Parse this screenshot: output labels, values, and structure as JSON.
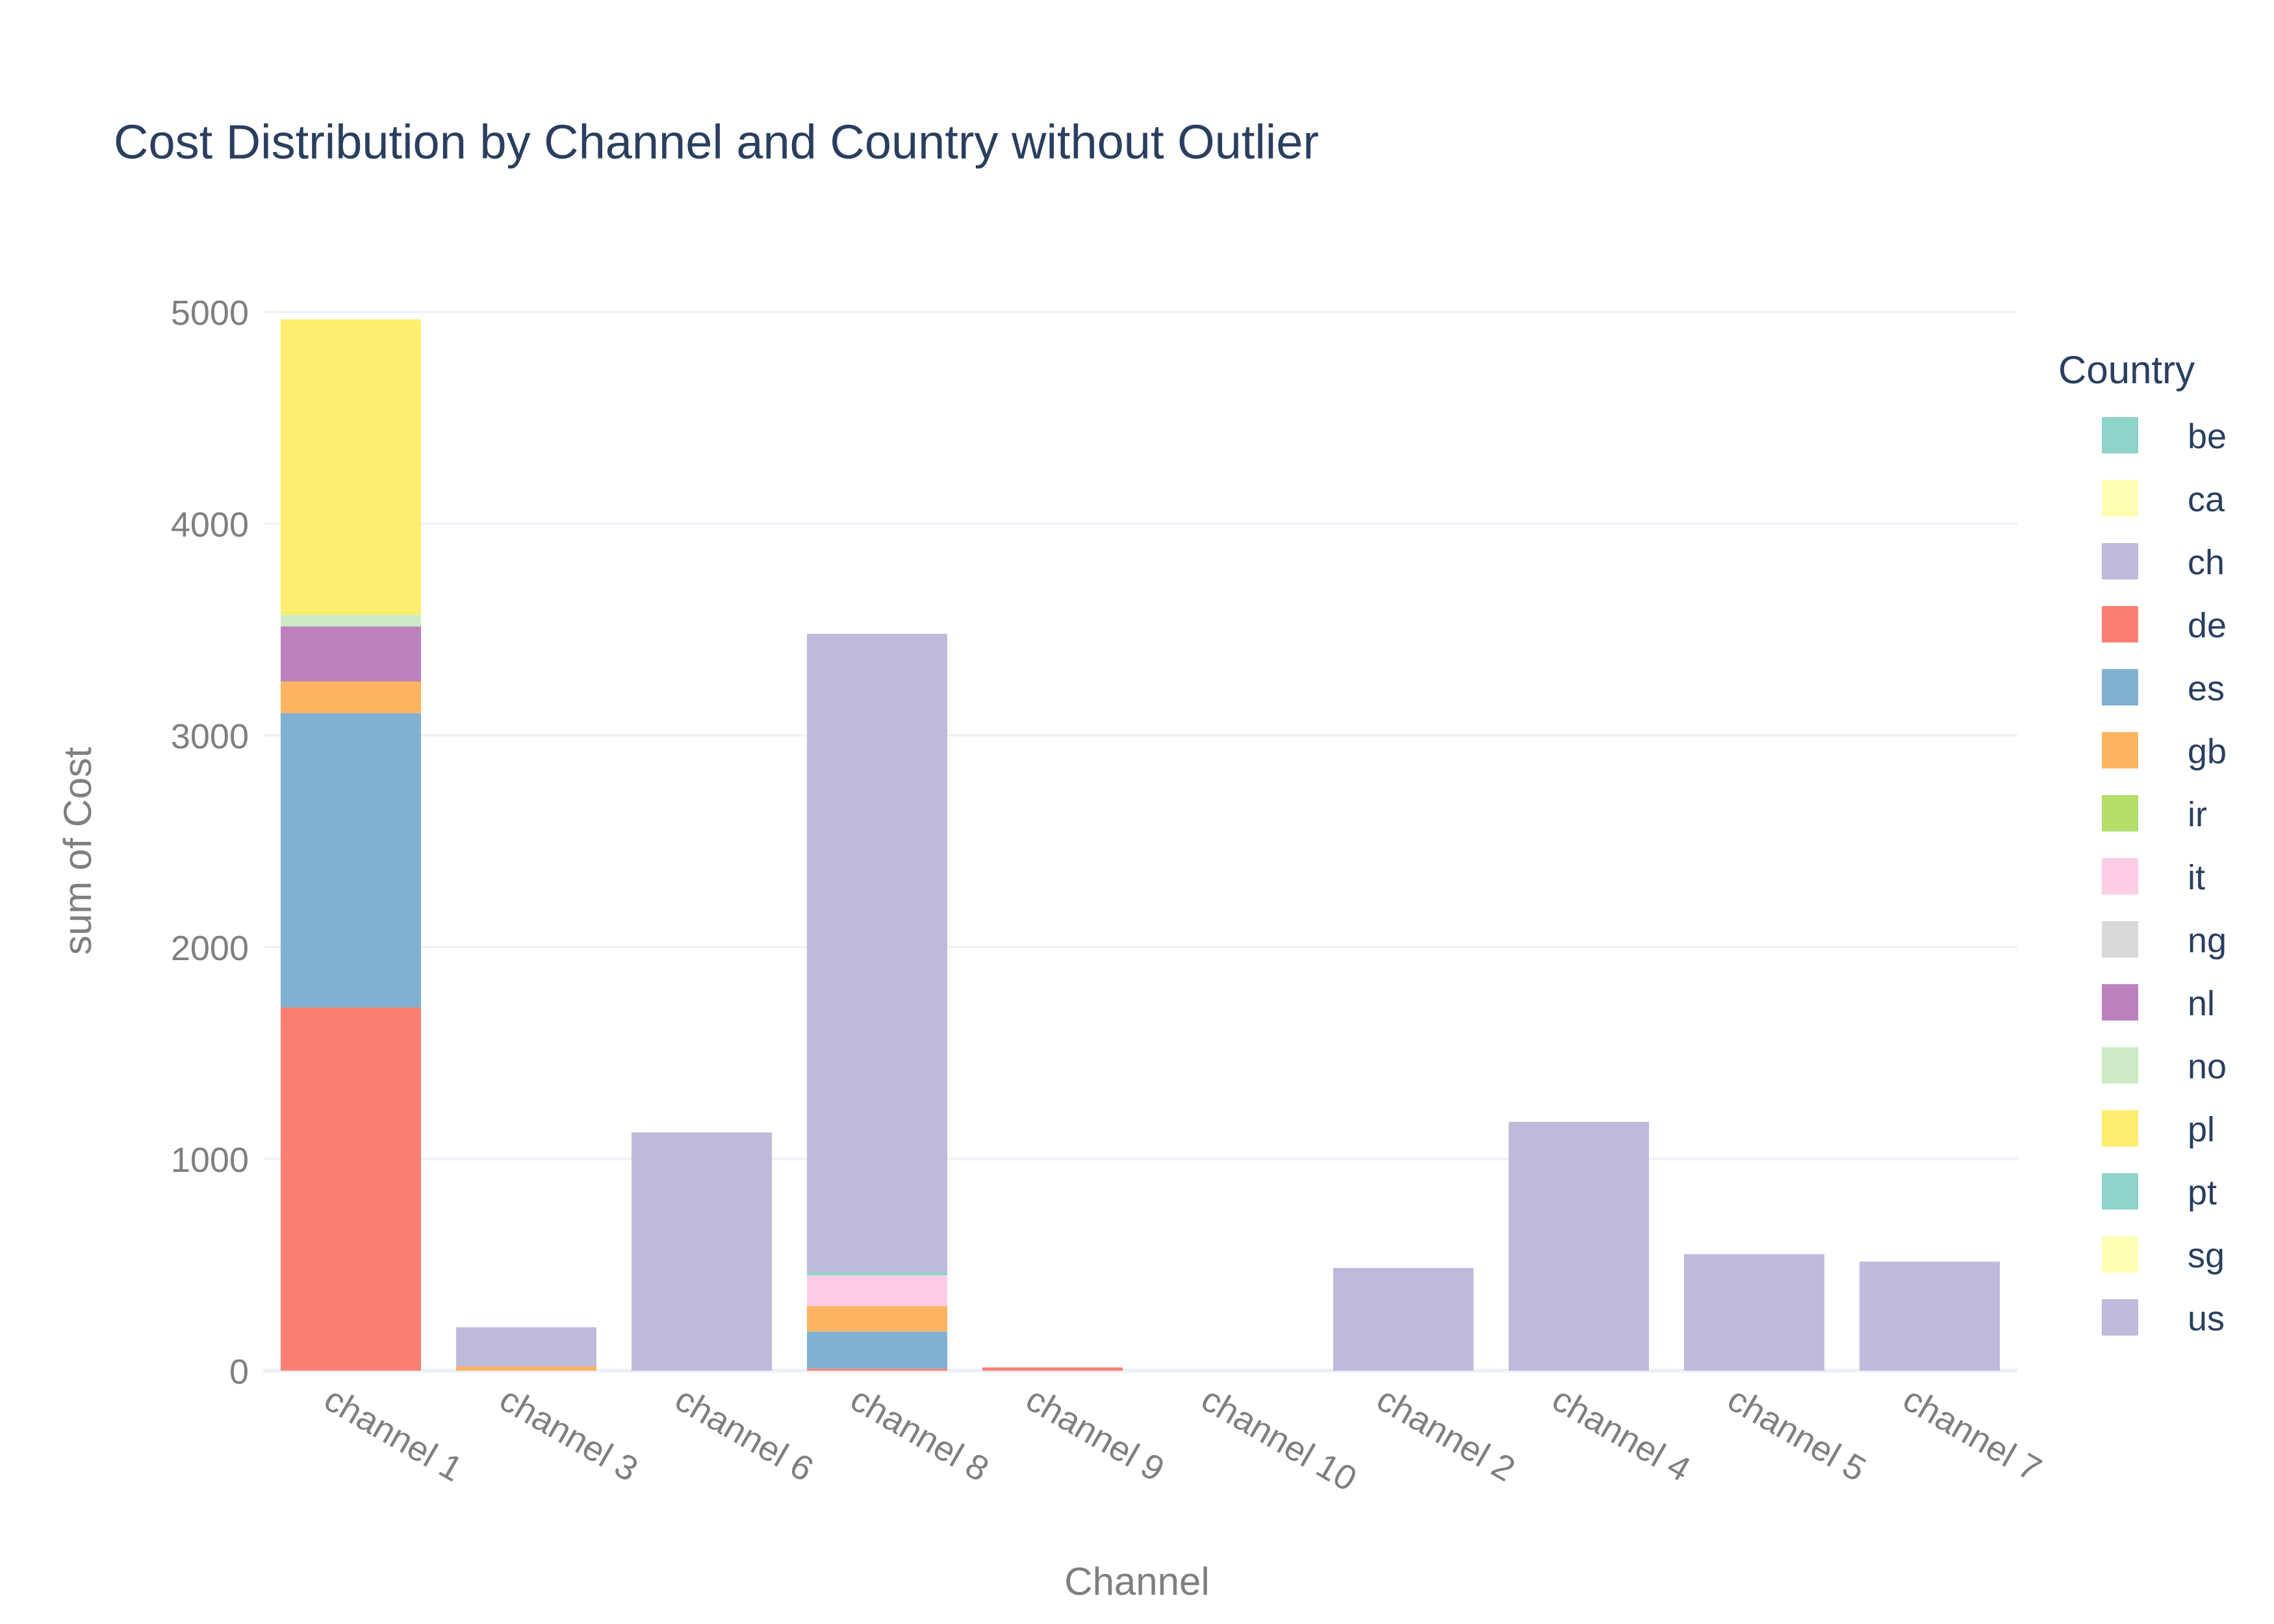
{
  "chart_data": {
    "type": "bar",
    "barmode": "stack",
    "title": "Cost Distribution by Channel and Country without Outlier",
    "xlabel": "Channel",
    "ylabel": "sum of Cost",
    "ylim": [
      0,
      5200
    ],
    "yticks": [
      0,
      1000,
      2000,
      3000,
      4000,
      5000
    ],
    "grid": true,
    "legend_title": "Country",
    "legend_placement": "right",
    "categories": [
      "channel 1",
      "channel 3",
      "channel 6",
      "channel 8",
      "channel 9",
      "channel 10",
      "channel 2",
      "channel 4",
      "channel 5",
      "channel 7"
    ],
    "series": [
      {
        "name": "be",
        "color": "#8dd3c7",
        "values": [
          0,
          0,
          0,
          0,
          0,
          0,
          0,
          0,
          0,
          0
        ]
      },
      {
        "name": "ca",
        "color": "#ffffb3",
        "values": [
          0,
          0,
          0,
          0,
          0,
          0,
          0,
          0,
          0,
          0
        ]
      },
      {
        "name": "ch",
        "color": "#bebada",
        "values": [
          0,
          0,
          0,
          0,
          0,
          0,
          0,
          0,
          0,
          0
        ]
      },
      {
        "name": "de",
        "color": "#fb8072",
        "values": [
          1715,
          0,
          0,
          10,
          15,
          0,
          0,
          0,
          0,
          0
        ]
      },
      {
        "name": "es",
        "color": "#80b1d3",
        "values": [
          1390,
          0,
          0,
          175,
          0,
          0,
          0,
          0,
          0,
          0
        ]
      },
      {
        "name": "gb",
        "color": "#fdb462",
        "values": [
          150,
          20,
          0,
          120,
          0,
          0,
          0,
          0,
          0,
          0
        ]
      },
      {
        "name": "ir",
        "color": "#b3de69",
        "values": [
          0,
          0,
          0,
          0,
          0,
          0,
          0,
          0,
          0,
          0
        ]
      },
      {
        "name": "it",
        "color": "#fccde5",
        "values": [
          0,
          0,
          0,
          145,
          0,
          0,
          0,
          0,
          0,
          0
        ]
      },
      {
        "name": "ng",
        "color": "#d9d9d9",
        "values": [
          0,
          0,
          0,
          0,
          0,
          0,
          0,
          0,
          0,
          0
        ]
      },
      {
        "name": "nl",
        "color": "#bc80bd",
        "values": [
          260,
          0,
          0,
          0,
          0,
          0,
          0,
          0,
          0,
          0
        ]
      },
      {
        "name": "no",
        "color": "#ccebc5",
        "values": [
          55,
          0,
          0,
          0,
          0,
          0,
          0,
          0,
          0,
          0
        ]
      },
      {
        "name": "pl",
        "color": "#ffed6f",
        "values": [
          1395,
          0,
          0,
          0,
          0,
          0,
          0,
          0,
          0,
          0
        ]
      },
      {
        "name": "pt",
        "color": "#8dd3c7",
        "values": [
          0,
          0,
          0,
          15,
          0,
          0,
          0,
          0,
          0,
          0
        ]
      },
      {
        "name": "sg",
        "color": "#ffffb3",
        "values": [
          0,
          0,
          0,
          0,
          0,
          0,
          0,
          0,
          0,
          0
        ]
      },
      {
        "name": "us",
        "color": "#bebada",
        "values": [
          0,
          185,
          1125,
          3015,
          0,
          0,
          485,
          1175,
          550,
          515
        ]
      }
    ]
  }
}
